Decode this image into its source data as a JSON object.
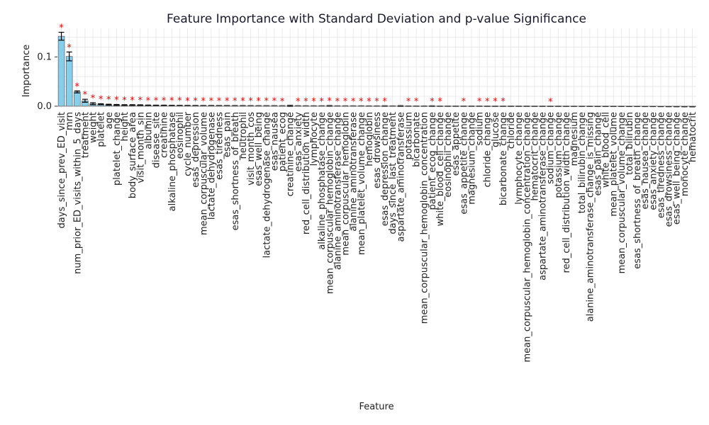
{
  "chart_data": {
    "type": "bar",
    "title": "Feature Importance with Standard Deviation and p-value Significance",
    "xlabel": "Feature",
    "ylabel": "Importance",
    "ylim": [
      -0.003,
      0.158
    ],
    "yticks": [
      "0.0",
      "0.1"
    ],
    "ytick_values": [
      0.0,
      0.1
    ],
    "grid": true,
    "bar_color": "#87ceeb",
    "error_color": "#000000",
    "significance_color": "#e00000",
    "significance_marker": "*",
    "categories": [
      "days_since_prev_ED_visit",
      "mrn",
      "num_prior_ED_visits_within_5_days",
      "treatment",
      "weight",
      "platelet",
      "age",
      "platelet_change",
      "height",
      "body_surface_area",
      "visit_month_sin",
      "albumin",
      "disease_site",
      "creatinine",
      "alkaline_phosphatase",
      "eosinophil",
      "cycle_number",
      "esas_depression",
      "mean_corpuscular_volume",
      "lactate_dehydrogenase",
      "esas_tiredness",
      "esas_pain",
      "esas_shortness_of_breath",
      "neutrophil",
      "visit_month_cos",
      "esas_well_being",
      "lactate_dehydrogenase_change",
      "esas_nausea",
      "patient_ecog",
      "creatinine_change",
      "esas_anxiety",
      "red_cell_distribution_width",
      "lymphocyte",
      "alkaline_phosphatase_change",
      "mean_corpuscular_hemoglobin_change",
      "alanine_aminotransferase_change",
      "mean_corpuscular_hemoglobin",
      "alanine_aminotransferase",
      "mean_platelet_volume_change",
      "hemoglobin",
      "esas_drowsiness",
      "esas_depression_change",
      "days_since_last_treatment",
      "aspartate_aminotransferase",
      "potassium",
      "bicarbonate",
      "mean_corpuscular_hemoglobin_concentration",
      "patient_ecog_change",
      "white_blood_cell_change",
      "eosinophil_change",
      "esas_appetite",
      "esas_appetite_change",
      "magnesium_change",
      "sodium",
      "chloride_change",
      "glucose",
      "bicarbonate_change",
      "chloride",
      "lymphocyte_change",
      "mean_corpuscular_hemoglobin_concentration_change",
      "hematocrit_change",
      "aspartate_aminotransferase_change",
      "sodium_change",
      "potassium_change",
      "red_cell_distribution_width_change",
      "magnesium",
      "total_bilirubin_change",
      "alanine_aminotransferase_change_is_missing",
      "esas_pain_change",
      "white_blood_cell",
      "mean_platelet_volume",
      "mean_corpuscular_volume_change",
      "total_bilirubin",
      "esas_shortness_of_breath_change",
      "esas_nausea_change",
      "esas_anxiety_change",
      "esas_tiredness_change",
      "esas_drowsiness_change",
      "esas_well_being_change",
      "monocyte_change",
      "hematocrit"
    ],
    "values": [
      0.142,
      0.101,
      0.029,
      0.011,
      0.005,
      0.004,
      0.003,
      0.0025,
      0.002,
      0.002,
      0.002,
      0.0015,
      0.0015,
      0.0015,
      0.0012,
      0.0012,
      0.0011,
      0.001,
      0.001,
      0.001,
      0.0009,
      0.0009,
      0.0008,
      0.0008,
      0.0008,
      0.0007,
      0.0007,
      0.0007,
      0.0006,
      0.0006,
      0.0006,
      0.0005,
      0.0005,
      0.0005,
      0.0005,
      0.0004,
      0.0004,
      0.0004,
      0.0004,
      0.0003,
      0.0003,
      0.0003,
      0.0003,
      0.0003,
      0.0002,
      0.0002,
      0.0002,
      0.0002,
      0.0001,
      0.0001,
      0.0001,
      0.0001,
      0.0001,
      0.0001,
      0.0,
      0.0,
      0.0,
      0.0,
      0.0,
      0.0,
      -0.0001,
      -0.0001,
      -0.0001,
      -0.0001,
      -0.0002,
      -0.0002,
      -0.0002,
      -0.0002,
      -0.0003,
      -0.0003,
      -0.0003,
      -0.0003,
      -0.0004,
      -0.0004,
      -0.0005,
      -0.0005,
      -0.0006,
      -0.0007,
      -0.0008,
      -0.0009,
      -0.001
    ],
    "std": [
      0.008,
      0.009,
      0.002,
      0.003,
      0.002,
      0.001,
      0.001,
      0.001,
      0.001,
      0.001,
      0.0008,
      0.0008,
      0.0006,
      0.0006,
      0.0006,
      0.0005,
      0.0005,
      0.0005,
      0.0004,
      0.0004,
      0.0004,
      0.0004,
      0.0004,
      0.0004,
      0.0003,
      0.0003,
      0.0003,
      0.0003,
      0.0003,
      0.0012,
      0.0003,
      0.0003,
      0.0003,
      0.0003,
      0.0008,
      0.0003,
      0.0003,
      0.0003,
      0.0003,
      0.0003,
      0.0003,
      0.0006,
      0.0003,
      0.0008,
      0.0003,
      0.0003,
      0.0003,
      0.0006,
      0.0003,
      0.0003,
      0.0003,
      0.0003,
      0.0003,
      0.0003,
      0.0003,
      0.0003,
      0.0003,
      0.0003,
      0.0003,
      0.0003,
      0.0003,
      0.0003,
      0.0003,
      0.0003,
      0.0003,
      0.0003,
      0.0003,
      0.0003,
      0.0003,
      0.0003,
      0.0003,
      0.0003,
      0.0003,
      0.0003,
      0.0003,
      0.0003,
      0.0003,
      0.0003,
      0.0003,
      0.0003,
      0.0003
    ],
    "significant": [
      true,
      true,
      true,
      true,
      true,
      true,
      true,
      true,
      true,
      true,
      true,
      true,
      true,
      true,
      true,
      true,
      true,
      true,
      true,
      true,
      true,
      true,
      true,
      true,
      true,
      true,
      true,
      true,
      true,
      false,
      true,
      true,
      true,
      true,
      true,
      true,
      true,
      true,
      true,
      true,
      true,
      true,
      false,
      false,
      true,
      true,
      false,
      true,
      true,
      false,
      false,
      true,
      false,
      true,
      true,
      true,
      true,
      false,
      false,
      false,
      false,
      false,
      true,
      false,
      false,
      false,
      false,
      false,
      false,
      false,
      false,
      false,
      false,
      false,
      false,
      false,
      false,
      false,
      false,
      false,
      false
    ]
  }
}
